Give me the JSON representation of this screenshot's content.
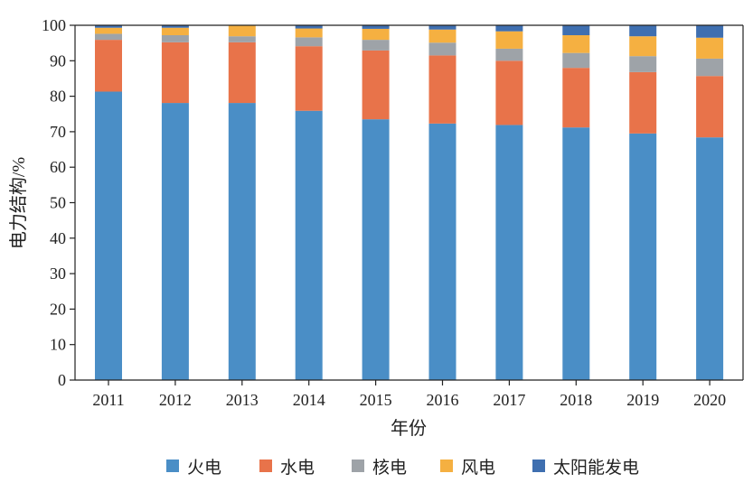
{
  "chart_data": {
    "type": "stacked-bar",
    "xlabel": "年份",
    "ylabel": "电力结构/%",
    "ylim": [
      0,
      100
    ],
    "yticks": [
      0,
      10,
      20,
      30,
      40,
      50,
      60,
      70,
      80,
      90,
      100
    ],
    "categories": [
      "2011",
      "2012",
      "2013",
      "2014",
      "2015",
      "2016",
      "2017",
      "2018",
      "2019",
      "2020"
    ],
    "legend_position": "bottom",
    "grid": false,
    "series": [
      {
        "name": "火电",
        "color": "#4a8ec6",
        "values": [
          81.3,
          78.1,
          78.1,
          75.9,
          73.5,
          72.3,
          71.9,
          71.2,
          69.5,
          68.4
        ]
      },
      {
        "name": "水电",
        "color": "#e8734a",
        "values": [
          14.6,
          17.1,
          17.1,
          18.2,
          19.4,
          19.2,
          18.1,
          16.8,
          17.3,
          17.3
        ]
      },
      {
        "name": "核电",
        "color": "#9ea3a8",
        "values": [
          1.7,
          2.0,
          1.7,
          2.5,
          3.0,
          3.6,
          3.4,
          4.2,
          4.5,
          4.9
        ]
      },
      {
        "name": "风电",
        "color": "#f5b041",
        "values": [
          1.7,
          2.1,
          3.1,
          2.5,
          3.1,
          3.7,
          4.9,
          5.0,
          5.6,
          5.9
        ]
      },
      {
        "name": "太阳能发电",
        "color": "#3f6fb0",
        "values": [
          0.7,
          0.7,
          0.0,
          0.9,
          1.0,
          1.2,
          1.7,
          2.8,
          3.1,
          3.5
        ]
      }
    ]
  }
}
